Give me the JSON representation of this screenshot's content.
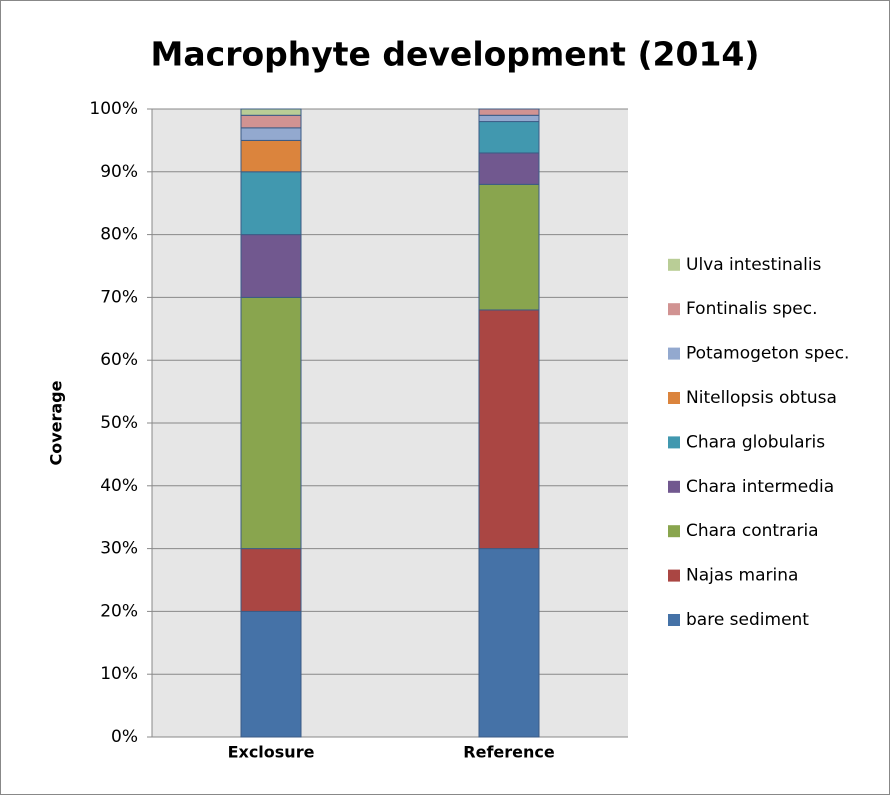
{
  "chart_data": {
    "type": "stacked-bar",
    "title": "Macrophyte development (2014)",
    "y_label": "Coverage",
    "categories": [
      "Exclosure",
      "Reference"
    ],
    "series": [
      {
        "name": "bare sediment",
        "color": "#4572a7",
        "values": [
          20,
          30
        ]
      },
      {
        "name": "Najas marina",
        "color": "#aa4643",
        "values": [
          10,
          38
        ]
      },
      {
        "name": "Chara contraria",
        "color": "#89a54e",
        "values": [
          40,
          20
        ]
      },
      {
        "name": "Chara intermedia",
        "color": "#71588f",
        "values": [
          10,
          5
        ]
      },
      {
        "name": "Chara globularis",
        "color": "#4198af",
        "values": [
          10,
          5
        ]
      },
      {
        "name": "Nitellopsis obtusa",
        "color": "#db843d",
        "values": [
          5,
          0
        ]
      },
      {
        "name": "Potamogeton spec.",
        "color": "#93a9cf",
        "values": [
          2,
          1
        ]
      },
      {
        "name": "Fontinalis spec.",
        "color": "#d19392",
        "values": [
          2,
          1
        ]
      },
      {
        "name": "Ulva intestinalis",
        "color": "#b9cd96",
        "values": [
          1,
          0
        ]
      }
    ],
    "ylim": [
      0,
      100
    ],
    "yticks": [
      {
        "value": 0,
        "label": "0%"
      },
      {
        "value": 10,
        "label": "10%"
      },
      {
        "value": 20,
        "label": "20%"
      },
      {
        "value": 30,
        "label": "30%"
      },
      {
        "value": 40,
        "label": "40%"
      },
      {
        "value": 50,
        "label": "50%"
      },
      {
        "value": 60,
        "label": "60%"
      },
      {
        "value": 70,
        "label": "70%"
      },
      {
        "value": 80,
        "label": "80%"
      },
      {
        "value": 90,
        "label": "90%"
      },
      {
        "value": 100,
        "label": "100%"
      }
    ],
    "grid": true,
    "legend": "right"
  }
}
